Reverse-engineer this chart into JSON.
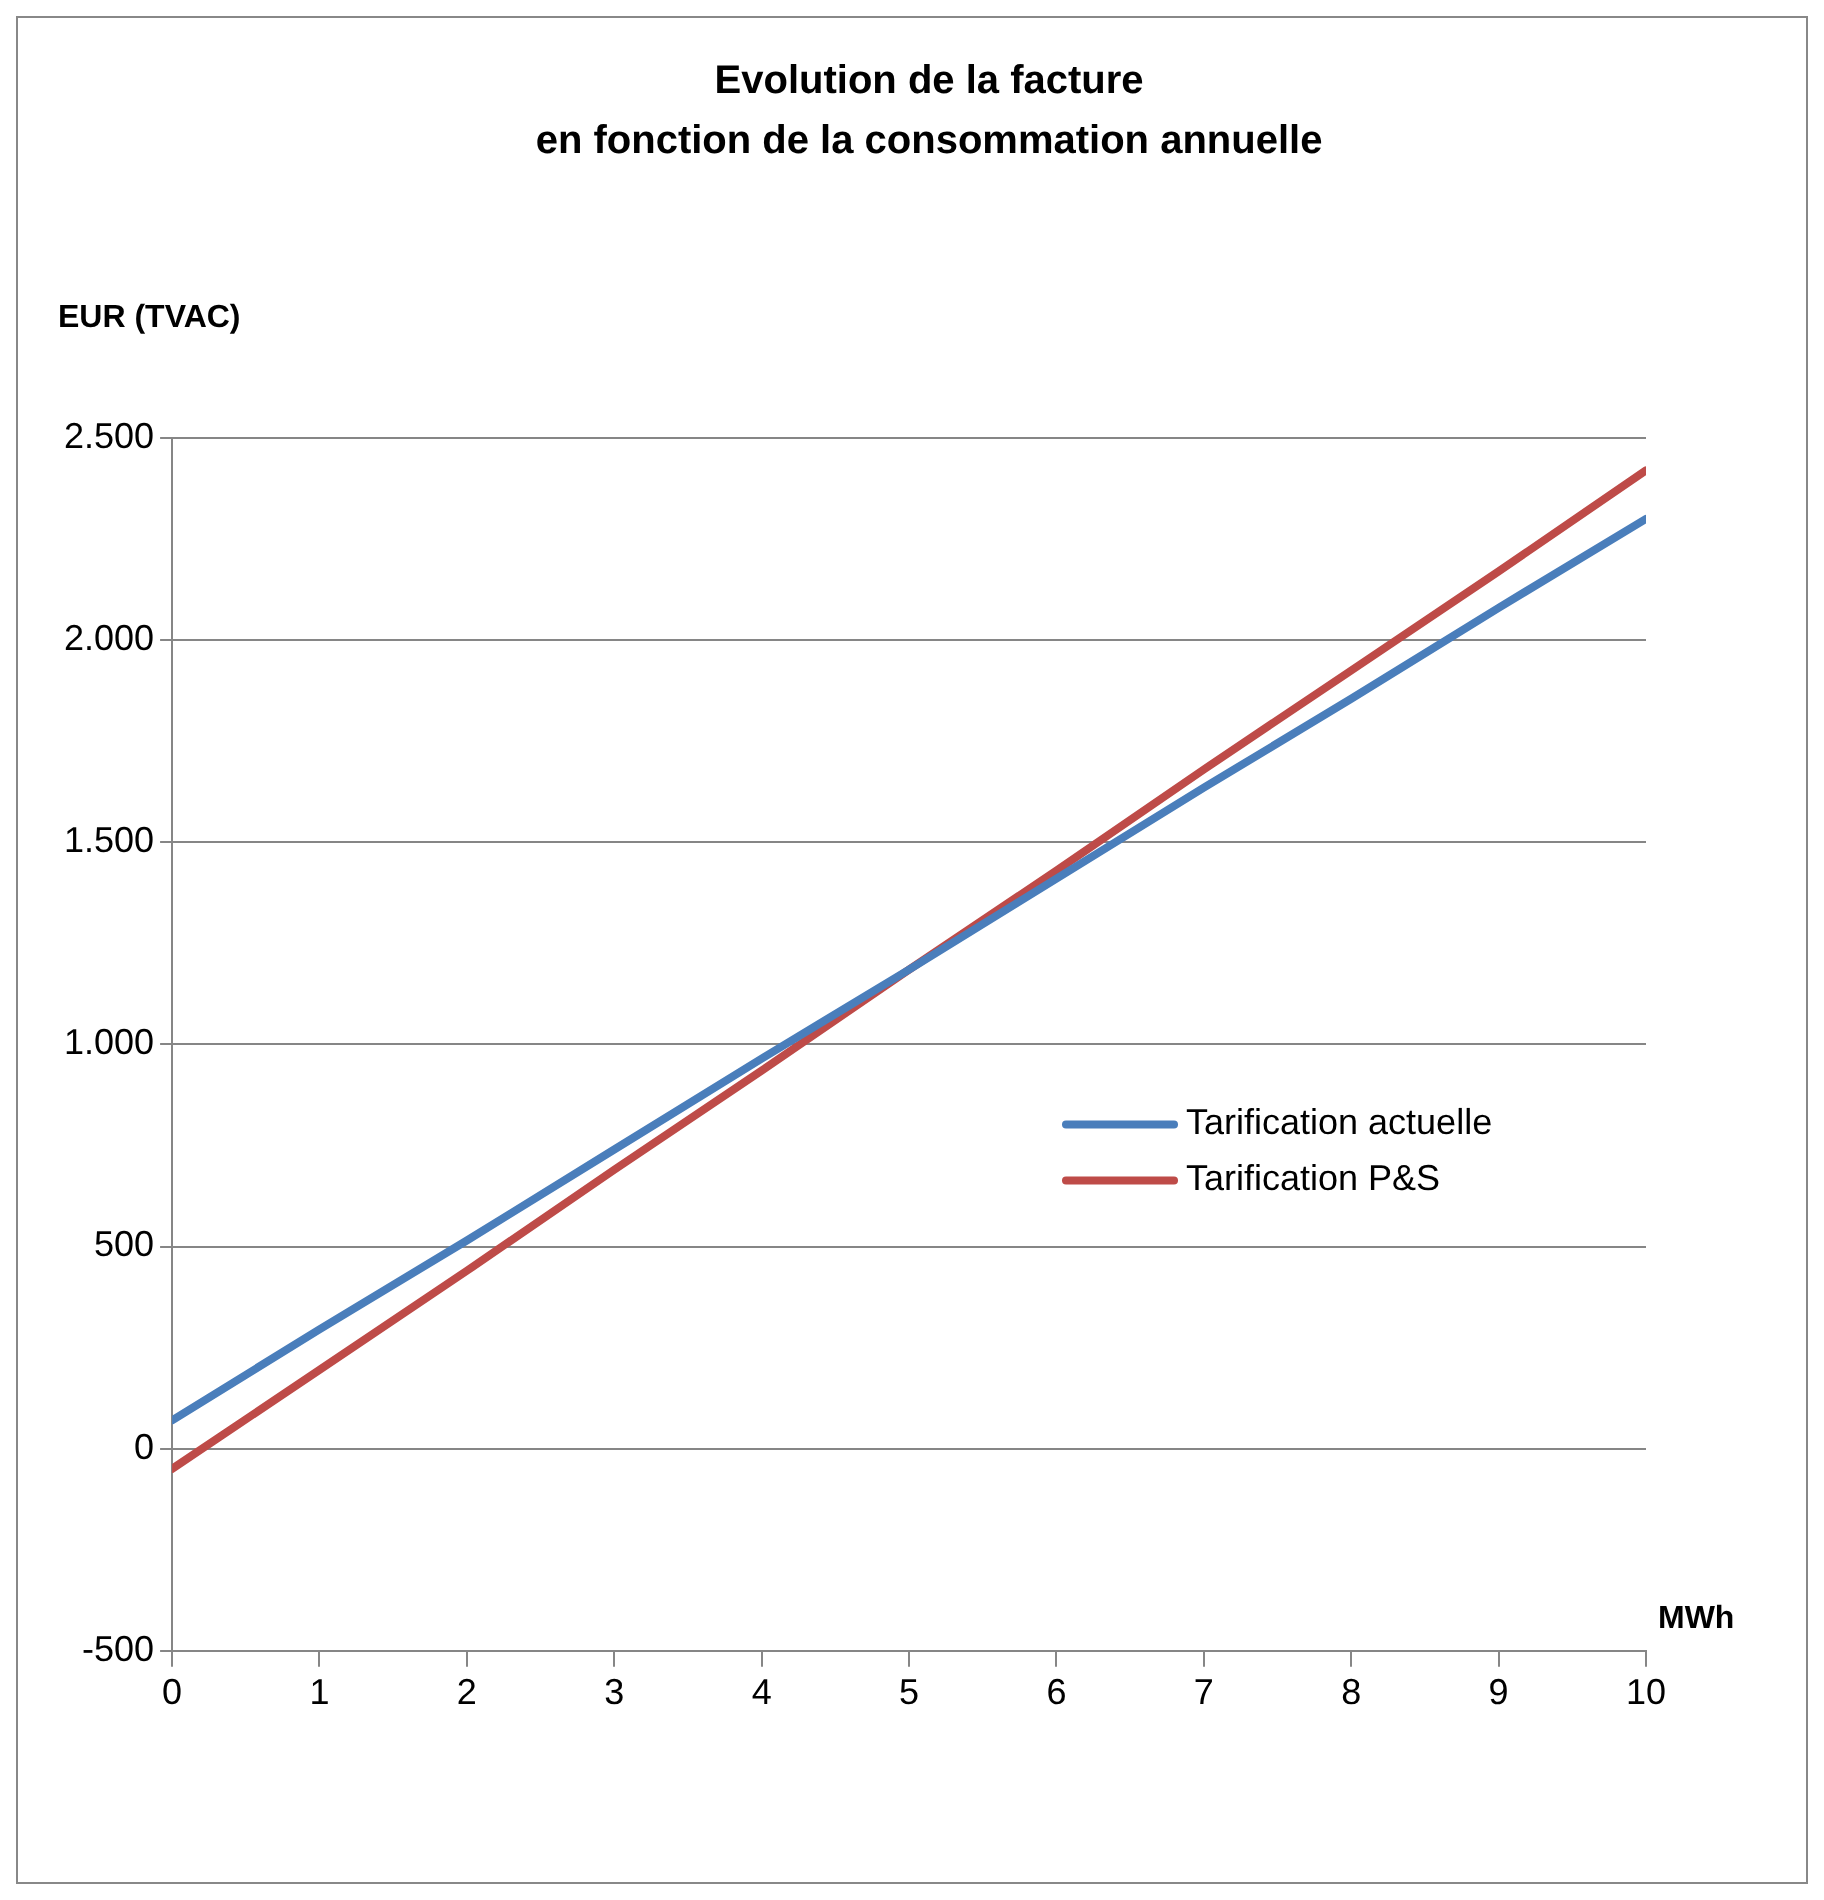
{
  "chart_data": {
    "type": "line",
    "title": "Evolution de la facture\nen fonction de la consommation annuelle",
    "ylabel": "EUR (TVAC)",
    "xlabel": "MWh",
    "x": [
      0,
      1,
      2,
      3,
      4,
      5,
      6,
      7,
      8,
      9,
      10
    ],
    "series": [
      {
        "name": "Tarification actuelle",
        "color": "#4a7ebb",
        "values": [
          70,
          295,
          515,
          740,
          965,
          1185,
          1410,
          1635,
          1855,
          2080,
          2300
        ]
      },
      {
        "name": "Tarification P&S",
        "color": "#be4b48",
        "values": [
          -50,
          195,
          440,
          690,
          935,
          1185,
          1430,
          1680,
          1925,
          2170,
          2420
        ]
      }
    ],
    "xlim": [
      0,
      10
    ],
    "xticks": [
      0,
      1,
      2,
      3,
      4,
      5,
      6,
      7,
      8,
      9,
      10
    ],
    "ylim": [
      -500,
      2500
    ],
    "yticks": [
      {
        "value": -500,
        "label": "-500"
      },
      0,
      500,
      {
        "value": 1000,
        "label": "1.000"
      },
      {
        "value": 1500,
        "label": "1.500"
      },
      {
        "value": 2000,
        "label": "2.000"
      },
      {
        "value": 2500,
        "label": "2.500"
      }
    ],
    "grid": "y",
    "legend": "right",
    "marker": "none",
    "line_style": "solid"
  }
}
